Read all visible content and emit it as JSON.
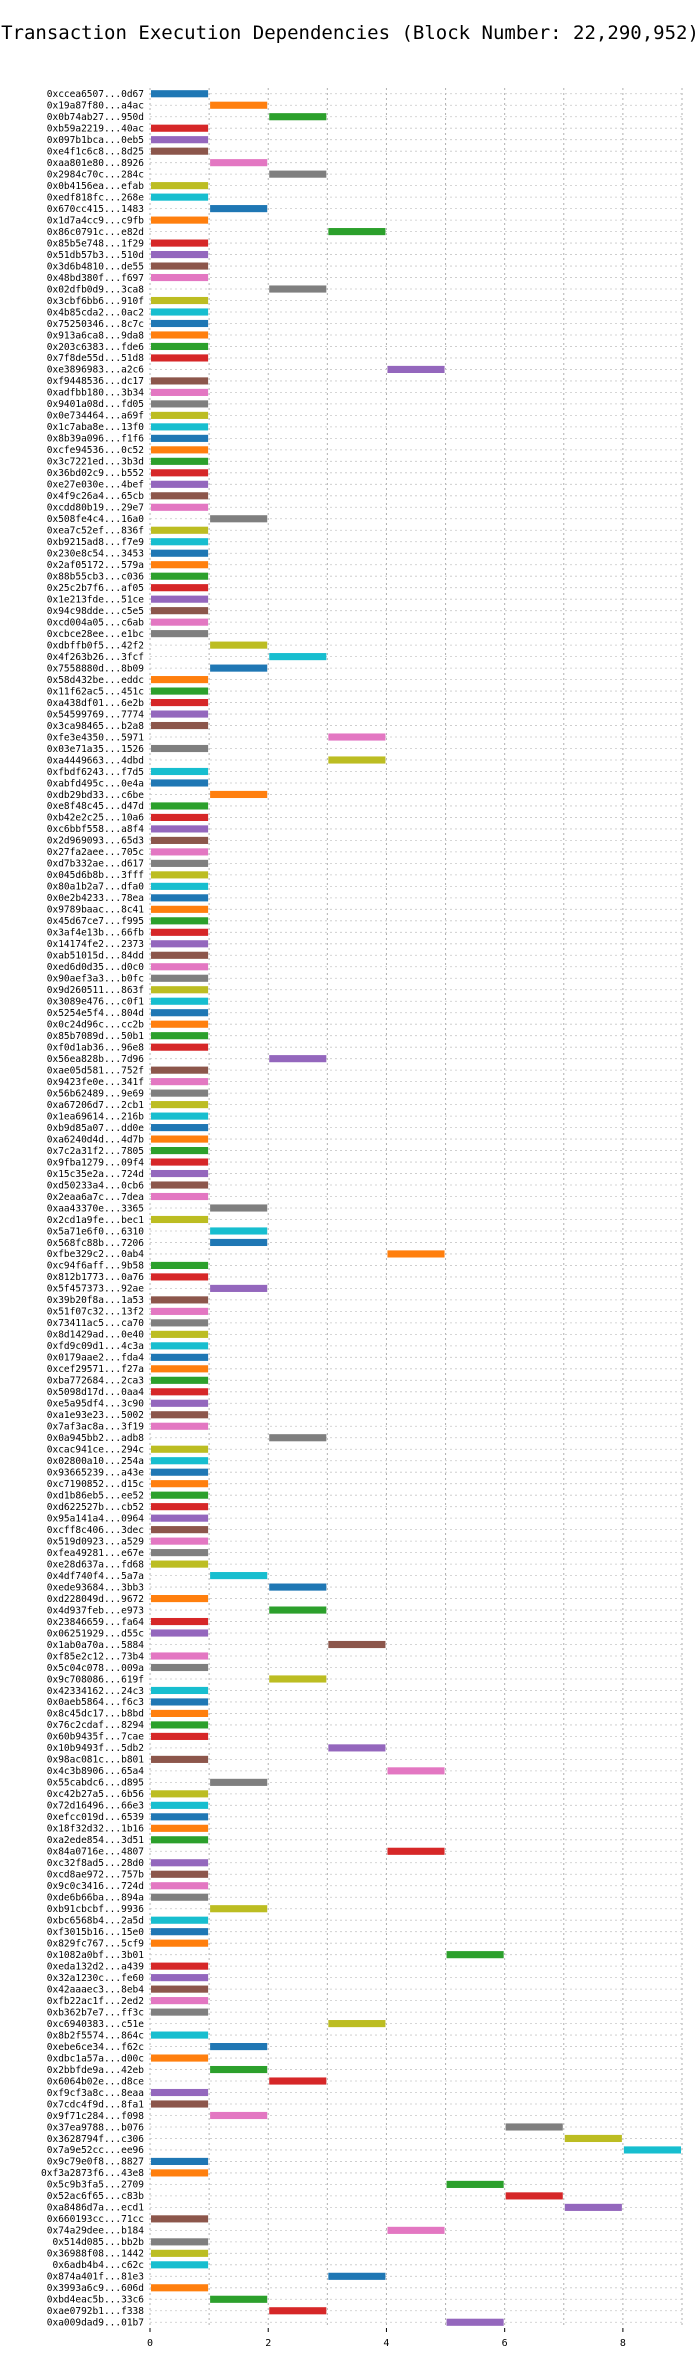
{
  "chart_data": {
    "type": "bar",
    "orientation": "horizontal",
    "title": "Transaction Execution Dependencies (Block Number: 22,290,952)",
    "xlabel": "",
    "ylabel": "",
    "xlim": [
      0,
      9
    ],
    "xticks": [
      0,
      2,
      4,
      6,
      8
    ],
    "grid": true,
    "palette": [
      "#1f77b4",
      "#ff7f0e",
      "#2ca02c",
      "#d62728",
      "#9467bd",
      "#8c564b",
      "#e377c2",
      "#7f7f7f",
      "#bcbd22",
      "#17becf"
    ],
    "bars": [
      {
        "label": "0xccea6507...0d67",
        "start": 0,
        "end": 1
      },
      {
        "label": "0x19a87f80...a4ac",
        "start": 1,
        "end": 2
      },
      {
        "label": "0x0b74ab27...950d",
        "start": 2,
        "end": 3
      },
      {
        "label": "0xb59a2219...40ac",
        "start": 0,
        "end": 1
      },
      {
        "label": "0x097b1bca...0eb5",
        "start": 0,
        "end": 1
      },
      {
        "label": "0xe4f1c6c8...8d25",
        "start": 0,
        "end": 1
      },
      {
        "label": "0xaa801e80...8926",
        "start": 1,
        "end": 2
      },
      {
        "label": "0x2984c70c...284c",
        "start": 2,
        "end": 3
      },
      {
        "label": "0x0b4156ea...efab",
        "start": 0,
        "end": 1
      },
      {
        "label": "0xedf818fc...268e",
        "start": 0,
        "end": 1
      },
      {
        "label": "0x670cc415...1483",
        "start": 1,
        "end": 2
      },
      {
        "label": "0x1d7a4cc9...c9fb",
        "start": 0,
        "end": 1
      },
      {
        "label": "0x86c0791c...e82d",
        "start": 3,
        "end": 4
      },
      {
        "label": "0x85b5e748...1f29",
        "start": 0,
        "end": 1
      },
      {
        "label": "0x51db57b3...510d",
        "start": 0,
        "end": 1
      },
      {
        "label": "0x3d6b4810...de55",
        "start": 0,
        "end": 1
      },
      {
        "label": "0x48bd380f...f697",
        "start": 0,
        "end": 1
      },
      {
        "label": "0x02dfb0d9...3ca8",
        "start": 2,
        "end": 3
      },
      {
        "label": "0x3cbf6bb6...910f",
        "start": 0,
        "end": 1
      },
      {
        "label": "0x4b85cda2...0ac2",
        "start": 0,
        "end": 1
      },
      {
        "label": "0x75250346...8c7c",
        "start": 0,
        "end": 1
      },
      {
        "label": "0x913a6ca8...9da8",
        "start": 0,
        "end": 1
      },
      {
        "label": "0x203c6383...fde6",
        "start": 0,
        "end": 1
      },
      {
        "label": "0x7f8de55d...51d8",
        "start": 0,
        "end": 1
      },
      {
        "label": "0xe3896983...a2c6",
        "start": 4,
        "end": 5
      },
      {
        "label": "0xf9448536...dc17",
        "start": 0,
        "end": 1
      },
      {
        "label": "0xadfbb180...3b34",
        "start": 0,
        "end": 1
      },
      {
        "label": "0x9401a08d...fd05",
        "start": 0,
        "end": 1
      },
      {
        "label": "0x0e734464...a69f",
        "start": 0,
        "end": 1
      },
      {
        "label": "0x1c7aba8e...13f0",
        "start": 0,
        "end": 1
      },
      {
        "label": "0x8b39a096...f1f6",
        "start": 0,
        "end": 1
      },
      {
        "label": "0xcfe94536...0c52",
        "start": 0,
        "end": 1
      },
      {
        "label": "0x3c7221ed...3b3d",
        "start": 0,
        "end": 1
      },
      {
        "label": "0x36bd02c9...b552",
        "start": 0,
        "end": 1
      },
      {
        "label": "0xe27e030e...4bef",
        "start": 0,
        "end": 1
      },
      {
        "label": "0x4f9c26a4...65cb",
        "start": 0,
        "end": 1
      },
      {
        "label": "0xcdd80b19...29e7",
        "start": 0,
        "end": 1
      },
      {
        "label": "0x508fe4c4...16a0",
        "start": 1,
        "end": 2
      },
      {
        "label": "0xea7c52ef...836f",
        "start": 0,
        "end": 1
      },
      {
        "label": "0xb9215ad8...f7e9",
        "start": 0,
        "end": 1
      },
      {
        "label": "0x230e8c54...3453",
        "start": 0,
        "end": 1
      },
      {
        "label": "0x2af05172...579a",
        "start": 0,
        "end": 1
      },
      {
        "label": "0x88b55cb3...c036",
        "start": 0,
        "end": 1
      },
      {
        "label": "0x25c2b7f6...af05",
        "start": 0,
        "end": 1
      },
      {
        "label": "0x1e213fde...51ce",
        "start": 0,
        "end": 1
      },
      {
        "label": "0x94c98dde...c5e5",
        "start": 0,
        "end": 1
      },
      {
        "label": "0xcd004a05...c6ab",
        "start": 0,
        "end": 1
      },
      {
        "label": "0xcbce28ee...e1bc",
        "start": 0,
        "end": 1
      },
      {
        "label": "0xdbffb0f5...42f2",
        "start": 1,
        "end": 2
      },
      {
        "label": "0x4f263b26...3fcf",
        "start": 2,
        "end": 3
      },
      {
        "label": "0x7558880d...8b09",
        "start": 1,
        "end": 2
      },
      {
        "label": "0x58d432be...eddc",
        "start": 0,
        "end": 1
      },
      {
        "label": "0x11f62ac5...451c",
        "start": 0,
        "end": 1
      },
      {
        "label": "0xa438df01...6e2b",
        "start": 0,
        "end": 1
      },
      {
        "label": "0x54599769...7774",
        "start": 0,
        "end": 1
      },
      {
        "label": "0x3ca98465...b2a8",
        "start": 0,
        "end": 1
      },
      {
        "label": "0xfe3e4350...5971",
        "start": 3,
        "end": 4
      },
      {
        "label": "0x03e71a35...1526",
        "start": 0,
        "end": 1
      },
      {
        "label": "0xa4449663...4dbd",
        "start": 3,
        "end": 4
      },
      {
        "label": "0xfbdf6243...f7d5",
        "start": 0,
        "end": 1
      },
      {
        "label": "0xabfd495c...0e4a",
        "start": 0,
        "end": 1
      },
      {
        "label": "0xdb29bd33...c6be",
        "start": 1,
        "end": 2
      },
      {
        "label": "0xe8f48c45...d47d",
        "start": 0,
        "end": 1
      },
      {
        "label": "0xb42e2c25...10a6",
        "start": 0,
        "end": 1
      },
      {
        "label": "0xc6bbf558...a8f4",
        "start": 0,
        "end": 1
      },
      {
        "label": "0x2d969093...65d3",
        "start": 0,
        "end": 1
      },
      {
        "label": "0x27fa2aee...705c",
        "start": 0,
        "end": 1
      },
      {
        "label": "0xd7b332ae...d617",
        "start": 0,
        "end": 1
      },
      {
        "label": "0x045d6b8b...3fff",
        "start": 0,
        "end": 1
      },
      {
        "label": "0x80a1b2a7...dfa0",
        "start": 0,
        "end": 1
      },
      {
        "label": "0x0e2b4233...78ea",
        "start": 0,
        "end": 1
      },
      {
        "label": "0x9789baac...8c41",
        "start": 0,
        "end": 1
      },
      {
        "label": "0x45d67ce7...f995",
        "start": 0,
        "end": 1
      },
      {
        "label": "0x3af4e13b...66fb",
        "start": 0,
        "end": 1
      },
      {
        "label": "0x14174fe2...2373",
        "start": 0,
        "end": 1
      },
      {
        "label": "0xab51015d...84dd",
        "start": 0,
        "end": 1
      },
      {
        "label": "0xed6d0d35...d0c0",
        "start": 0,
        "end": 1
      },
      {
        "label": "0x90aef3a3...b0fc",
        "start": 0,
        "end": 1
      },
      {
        "label": "0x9d260511...863f",
        "start": 0,
        "end": 1
      },
      {
        "label": "0x3089e476...c0f1",
        "start": 0,
        "end": 1
      },
      {
        "label": "0x5254e5f4...804d",
        "start": 0,
        "end": 1
      },
      {
        "label": "0x0c24d96c...cc2b",
        "start": 0,
        "end": 1
      },
      {
        "label": "0x85b7089d...50b1",
        "start": 0,
        "end": 1
      },
      {
        "label": "0xf0d1ab36...96e8",
        "start": 0,
        "end": 1
      },
      {
        "label": "0x56ea828b...7d96",
        "start": 2,
        "end": 3
      },
      {
        "label": "0xae05d581...752f",
        "start": 0,
        "end": 1
      },
      {
        "label": "0x9423fe0e...341f",
        "start": 0,
        "end": 1
      },
      {
        "label": "0x56b62489...9e69",
        "start": 0,
        "end": 1
      },
      {
        "label": "0xa67206d7...2cb1",
        "start": 0,
        "end": 1
      },
      {
        "label": "0x1ea69614...216b",
        "start": 0,
        "end": 1
      },
      {
        "label": "0xb9d85a07...dd0e",
        "start": 0,
        "end": 1
      },
      {
        "label": "0xa6240d4d...4d7b",
        "start": 0,
        "end": 1
      },
      {
        "label": "0x7c2a31f2...7805",
        "start": 0,
        "end": 1
      },
      {
        "label": "0x9fba1279...09f4",
        "start": 0,
        "end": 1
      },
      {
        "label": "0x15c35e2a...724d",
        "start": 0,
        "end": 1
      },
      {
        "label": "0xd50233a4...0cb6",
        "start": 0,
        "end": 1
      },
      {
        "label": "0x2eaa6a7c...7dea",
        "start": 0,
        "end": 1
      },
      {
        "label": "0xaa43370e...3365",
        "start": 1,
        "end": 2
      },
      {
        "label": "0x2cd1a9fe...bec1",
        "start": 0,
        "end": 1
      },
      {
        "label": "0x5a71e6f0...6310",
        "start": 1,
        "end": 2
      },
      {
        "label": "0x568fc88b...7206",
        "start": 1,
        "end": 2
      },
      {
        "label": "0xfbe329c2...0ab4",
        "start": 4,
        "end": 5
      },
      {
        "label": "0xc94f6aff...9b58",
        "start": 0,
        "end": 1
      },
      {
        "label": "0x812b1773...0a76",
        "start": 0,
        "end": 1
      },
      {
        "label": "0x5f457373...92ae",
        "start": 1,
        "end": 2
      },
      {
        "label": "0x39b20f8a...1a53",
        "start": 0,
        "end": 1
      },
      {
        "label": "0x51f07c32...13f2",
        "start": 0,
        "end": 1
      },
      {
        "label": "0x73411ac5...ca70",
        "start": 0,
        "end": 1
      },
      {
        "label": "0x8d1429ad...0e40",
        "start": 0,
        "end": 1
      },
      {
        "label": "0xfd9c09d1...4c3a",
        "start": 0,
        "end": 1
      },
      {
        "label": "0x0179aae2...fda4",
        "start": 0,
        "end": 1
      },
      {
        "label": "0xcef29571...f27a",
        "start": 0,
        "end": 1
      },
      {
        "label": "0xba772684...2ca3",
        "start": 0,
        "end": 1
      },
      {
        "label": "0x5098d17d...0aa4",
        "start": 0,
        "end": 1
      },
      {
        "label": "0xe5a95df4...3c90",
        "start": 0,
        "end": 1
      },
      {
        "label": "0xa1e93e23...5002",
        "start": 0,
        "end": 1
      },
      {
        "label": "0x7af3ac8a...3f19",
        "start": 0,
        "end": 1
      },
      {
        "label": "0x0a945bb2...adb8",
        "start": 2,
        "end": 3
      },
      {
        "label": "0xcac941ce...294c",
        "start": 0,
        "end": 1
      },
      {
        "label": "0x02800a10...254a",
        "start": 0,
        "end": 1
      },
      {
        "label": "0x93665239...a43e",
        "start": 0,
        "end": 1
      },
      {
        "label": "0xc7190852...d15c",
        "start": 0,
        "end": 1
      },
      {
        "label": "0xd1b86eb5...ee52",
        "start": 0,
        "end": 1
      },
      {
        "label": "0xd622527b...cb52",
        "start": 0,
        "end": 1
      },
      {
        "label": "0x95a141a4...0964",
        "start": 0,
        "end": 1
      },
      {
        "label": "0xcff8c406...3dec",
        "start": 0,
        "end": 1
      },
      {
        "label": "0x519d0923...a529",
        "start": 0,
        "end": 1
      },
      {
        "label": "0xfea49281...e67e",
        "start": 0,
        "end": 1
      },
      {
        "label": "0xe28d637a...fd68",
        "start": 0,
        "end": 1
      },
      {
        "label": "0x4df740f4...5a7a",
        "start": 1,
        "end": 2
      },
      {
        "label": "0xede93684...3bb3",
        "start": 2,
        "end": 3
      },
      {
        "label": "0xd228049d...9672",
        "start": 0,
        "end": 1
      },
      {
        "label": "0x4d937feb...e973",
        "start": 2,
        "end": 3
      },
      {
        "label": "0x23846659...fa64",
        "start": 0,
        "end": 1
      },
      {
        "label": "0x06251929...d55c",
        "start": 0,
        "end": 1
      },
      {
        "label": "0x1ab0a70a...5884",
        "start": 3,
        "end": 4
      },
      {
        "label": "0xf85e2c12...73b4",
        "start": 0,
        "end": 1
      },
      {
        "label": "0x5c04c078...009a",
        "start": 0,
        "end": 1
      },
      {
        "label": "0x9c708086...619f",
        "start": 2,
        "end": 3
      },
      {
        "label": "0x42334162...24c3",
        "start": 0,
        "end": 1
      },
      {
        "label": "0x0aeb5864...f6c3",
        "start": 0,
        "end": 1
      },
      {
        "label": "0x8c45dc17...b8bd",
        "start": 0,
        "end": 1
      },
      {
        "label": "0x76c2cdaf...8294",
        "start": 0,
        "end": 1
      },
      {
        "label": "0x60b9435f...7cae",
        "start": 0,
        "end": 1
      },
      {
        "label": "0x10b9493f...5db2",
        "start": 3,
        "end": 4
      },
      {
        "label": "0x98ac081c...b801",
        "start": 0,
        "end": 1
      },
      {
        "label": "0x4c3b8906...65a4",
        "start": 4,
        "end": 5
      },
      {
        "label": "0x55cabdc6...d895",
        "start": 1,
        "end": 2
      },
      {
        "label": "0xc42b27a5...6b56",
        "start": 0,
        "end": 1
      },
      {
        "label": "0x72d16496...66e3",
        "start": 0,
        "end": 1
      },
      {
        "label": "0xefcc019d...6539",
        "start": 0,
        "end": 1
      },
      {
        "label": "0x18f32d32...1b16",
        "start": 0,
        "end": 1
      },
      {
        "label": "0xa2ede854...3d51",
        "start": 0,
        "end": 1
      },
      {
        "label": "0x84a0716e...4807",
        "start": 4,
        "end": 5
      },
      {
        "label": "0xc32f8ad5...28d0",
        "start": 0,
        "end": 1
      },
      {
        "label": "0xcd8ae972...757b",
        "start": 0,
        "end": 1
      },
      {
        "label": "0x9c0c3416...724d",
        "start": 0,
        "end": 1
      },
      {
        "label": "0xde6b66ba...894a",
        "start": 0,
        "end": 1
      },
      {
        "label": "0xb91cbcbf...9936",
        "start": 1,
        "end": 2
      },
      {
        "label": "0xbc6568b4...2a5d",
        "start": 0,
        "end": 1
      },
      {
        "label": "0xf3015b16...15e0",
        "start": 0,
        "end": 1
      },
      {
        "label": "0x829fc767...5cf9",
        "start": 0,
        "end": 1
      },
      {
        "label": "0x1082a0bf...3b01",
        "start": 5,
        "end": 6
      },
      {
        "label": "0xeda132d2...a439",
        "start": 0,
        "end": 1
      },
      {
        "label": "0x32a1230c...fe60",
        "start": 0,
        "end": 1
      },
      {
        "label": "0x42aaaec3...8eb4",
        "start": 0,
        "end": 1
      },
      {
        "label": "0xfb22ac1f...2ed2",
        "start": 0,
        "end": 1
      },
      {
        "label": "0xb362b7e7...ff3c",
        "start": 0,
        "end": 1
      },
      {
        "label": "0xc6940383...c51e",
        "start": 3,
        "end": 4
      },
      {
        "label": "0x8b2f5574...864c",
        "start": 0,
        "end": 1
      },
      {
        "label": "0xebe6ce34...f62c",
        "start": 1,
        "end": 2
      },
      {
        "label": "0xdbc1a57a...d00c",
        "start": 0,
        "end": 1
      },
      {
        "label": "0x2bbfde9a...42eb",
        "start": 1,
        "end": 2
      },
      {
        "label": "0x6064b02e...d8ce",
        "start": 2,
        "end": 3
      },
      {
        "label": "0xf9cf3a8c...8eaa",
        "start": 0,
        "end": 1
      },
      {
        "label": "0x7cdc4f9d...8fa1",
        "start": 0,
        "end": 1
      },
      {
        "label": "0x9f71c284...f098",
        "start": 1,
        "end": 2
      },
      {
        "label": "0x37ea9788...b076",
        "start": 6,
        "end": 7
      },
      {
        "label": "0x3628794f...c306",
        "start": 7,
        "end": 8
      },
      {
        "label": "0x7a9e52cc...ee96",
        "start": 8,
        "end": 9
      },
      {
        "label": "0x9c79e0f8...8827",
        "start": 0,
        "end": 1
      },
      {
        "label": "0xf3a2873f6...43e8",
        "start": 0,
        "end": 1
      },
      {
        "label": "0x5c9b3fa5...2709",
        "start": 5,
        "end": 6
      },
      {
        "label": "0x52ac6f65...c83b",
        "start": 6,
        "end": 7
      },
      {
        "label": "0xa8486d7a...ecd1",
        "start": 7,
        "end": 8
      },
      {
        "label": "0x660193cc...71cc",
        "start": 0,
        "end": 1
      },
      {
        "label": "0x74a29dee...b184",
        "start": 4,
        "end": 5
      },
      {
        "label": "0x514d085...bb2b",
        "start": 0,
        "end": 1
      },
      {
        "label": "0x36988f08...1442",
        "start": 0,
        "end": 1
      },
      {
        "label": "0x6adb4b4...c62c",
        "start": 0,
        "end": 1
      },
      {
        "label": "0x874a401f...81e3",
        "start": 3,
        "end": 4
      },
      {
        "label": "0x3993a6c9...606d",
        "start": 0,
        "end": 1
      },
      {
        "label": "0xbd4eac5b...33c6",
        "start": 1,
        "end": 2
      },
      {
        "label": "0xae0792b1...f338",
        "start": 2,
        "end": 3
      },
      {
        "label": "0xa009dad9...01b7",
        "start": 5,
        "end": 6
      }
    ]
  }
}
